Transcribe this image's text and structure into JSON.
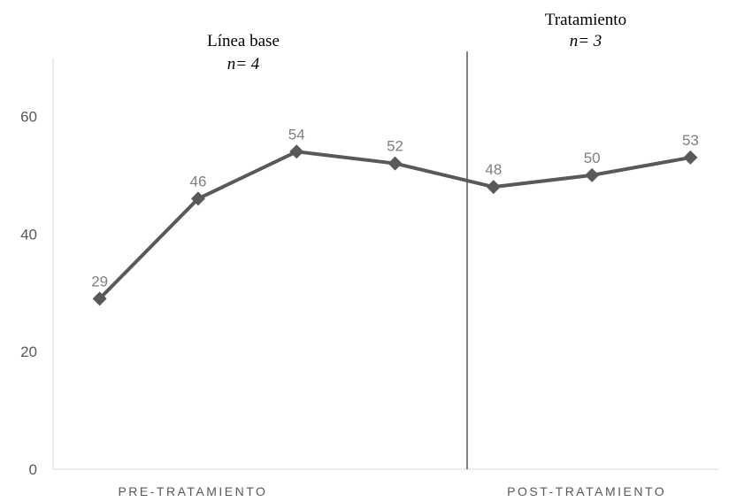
{
  "chart_data": {
    "type": "line",
    "categories": [
      null,
      "PRE-TRATAMIENTO",
      null,
      null,
      null,
      "POST-TRATAMIENTO",
      null
    ],
    "values": [
      29,
      46,
      54,
      52,
      48,
      50,
      53
    ],
    "color": "#595959",
    "ylim": [
      0,
      70
    ],
    "yticks": [
      0,
      20,
      40,
      60
    ],
    "annotations": [
      "Línea base",
      "n= 4",
      "Tratamiento",
      "n= 3"
    ]
  }
}
